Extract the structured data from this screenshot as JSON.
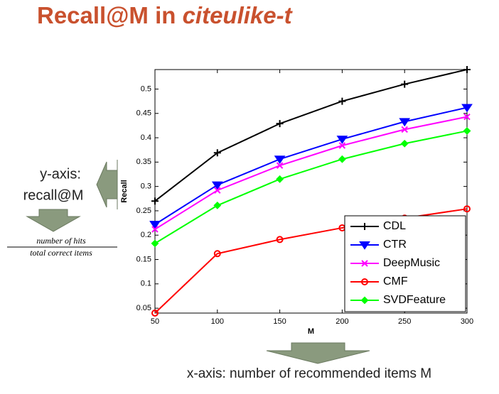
{
  "slide": {
    "title_main": "Recall@M in ",
    "title_italic": "citeulike-t",
    "y_note_1": "y-axis:",
    "y_note_2": "recall@M",
    "fraction_top": "number of hits",
    "fraction_bottom": "total correct items",
    "x_note": "x-axis: number of recommended items M"
  },
  "chart_data": {
    "type": "line",
    "x_label": "M",
    "y_label": "Recall",
    "x": [
      50,
      100,
      150,
      200,
      250,
      300
    ],
    "xlim": [
      50,
      300
    ],
    "xticks": [
      50,
      100,
      150,
      200,
      250,
      300
    ],
    "ylim": [
      0.04,
      0.54
    ],
    "yticks": [
      0.05,
      0.1,
      0.15,
      0.2,
      0.25,
      0.3,
      0.35,
      0.4,
      0.45,
      0.5
    ],
    "legend": "lower right",
    "series": [
      {
        "name": "CDL",
        "color": "#000000",
        "marker": "plus",
        "values": [
          0.27,
          0.369,
          0.429,
          0.475,
          0.51,
          0.54
        ]
      },
      {
        "name": "CTR",
        "color": "#0000ff",
        "marker": "triangle-down",
        "values": [
          0.222,
          0.303,
          0.356,
          0.397,
          0.433,
          0.462
        ]
      },
      {
        "name": "DeepMusic",
        "color": "#ff00ff",
        "marker": "x",
        "values": [
          0.212,
          0.292,
          0.343,
          0.384,
          0.417,
          0.443
        ]
      },
      {
        "name": "CMF",
        "color": "#ff0000",
        "marker": "circle",
        "values": [
          0.04,
          0.162,
          0.191,
          0.215,
          0.235,
          0.254
        ]
      },
      {
        "name": "SVDFeature",
        "color": "#00ff00",
        "marker": "diamond",
        "values": [
          0.183,
          0.261,
          0.315,
          0.356,
          0.388,
          0.414
        ]
      }
    ]
  }
}
